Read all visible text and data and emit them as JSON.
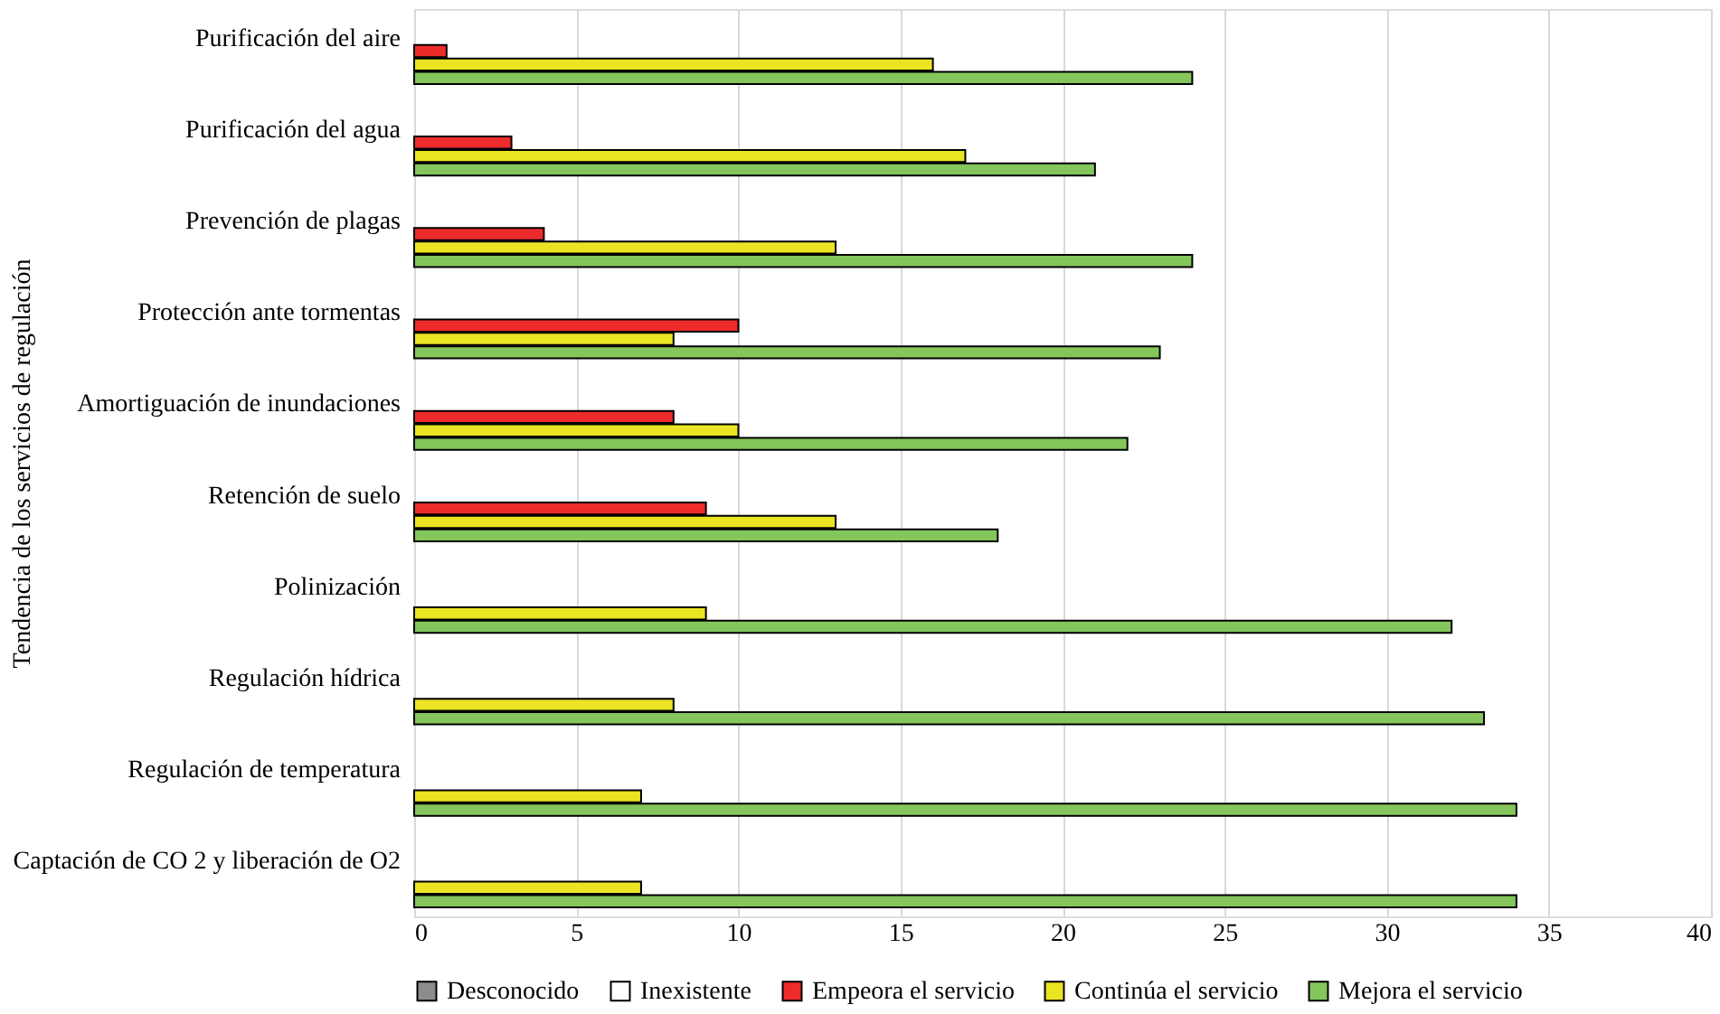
{
  "chart_data": {
    "type": "bar",
    "orientation": "horizontal",
    "ylabel": "Tendencia de los servicios de regulación",
    "categories": [
      "Purificación del aire",
      "Purificación del agua",
      "Prevención de plagas",
      "Protección ante tormentas",
      "Amortiguación de inundaciones",
      "Retención de suelo",
      "Polinización",
      "Regulación hídrica",
      "Regulación de temperatura",
      "Captación de CO 2 y liberación de O2"
    ],
    "series": [
      {
        "name": "Desconocido",
        "color": "#8c8c8c",
        "values": [
          0,
          0,
          0,
          0,
          0,
          0,
          0,
          0,
          0,
          0
        ]
      },
      {
        "name": "Inexistente",
        "color": "#ffffff",
        "values": [
          0,
          0,
          0,
          0,
          0,
          0,
          0,
          0,
          0,
          0
        ]
      },
      {
        "name": "Empeora el servicio",
        "color": "#ee2b2b",
        "values": [
          1,
          3,
          4,
          10,
          8,
          9,
          0,
          0,
          0,
          0
        ]
      },
      {
        "name": "Continúa el servicio",
        "color": "#ebe423",
        "values": [
          16,
          17,
          13,
          8,
          10,
          13,
          9,
          8,
          7,
          7
        ]
      },
      {
        "name": "Mejora el servicio",
        "color": "#84c65c",
        "values": [
          24,
          21,
          24,
          23,
          22,
          18,
          32,
          33,
          34,
          34
        ]
      }
    ],
    "xlim": [
      0,
      40
    ],
    "xticks": [
      0,
      5,
      10,
      15,
      20,
      25,
      30,
      35,
      40
    ],
    "grid": "x",
    "legend": "bottom"
  }
}
